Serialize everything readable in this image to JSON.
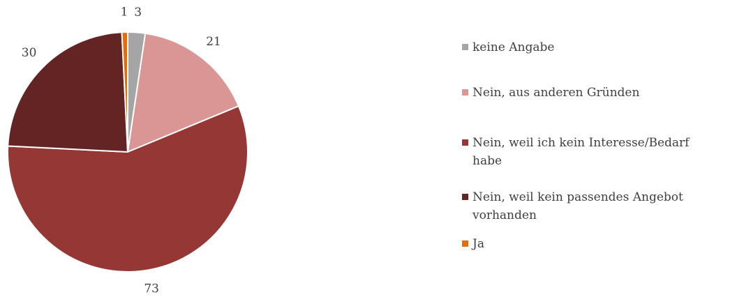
{
  "chart_data": {
    "type": "pie",
    "categories": [
      "keine Angabe",
      "Nein, aus anderen Gründen",
      "Nein, weil ich kein Interesse/Bedarf habe",
      "Nein, weil kein passendes Angebot vorhanden",
      "Ja"
    ],
    "values": [
      3,
      21,
      73,
      30,
      1
    ],
    "colors": [
      "#a5a5a5",
      "#d99694",
      "#953735",
      "#632523",
      "#e46c0a"
    ],
    "legend": "right"
  }
}
